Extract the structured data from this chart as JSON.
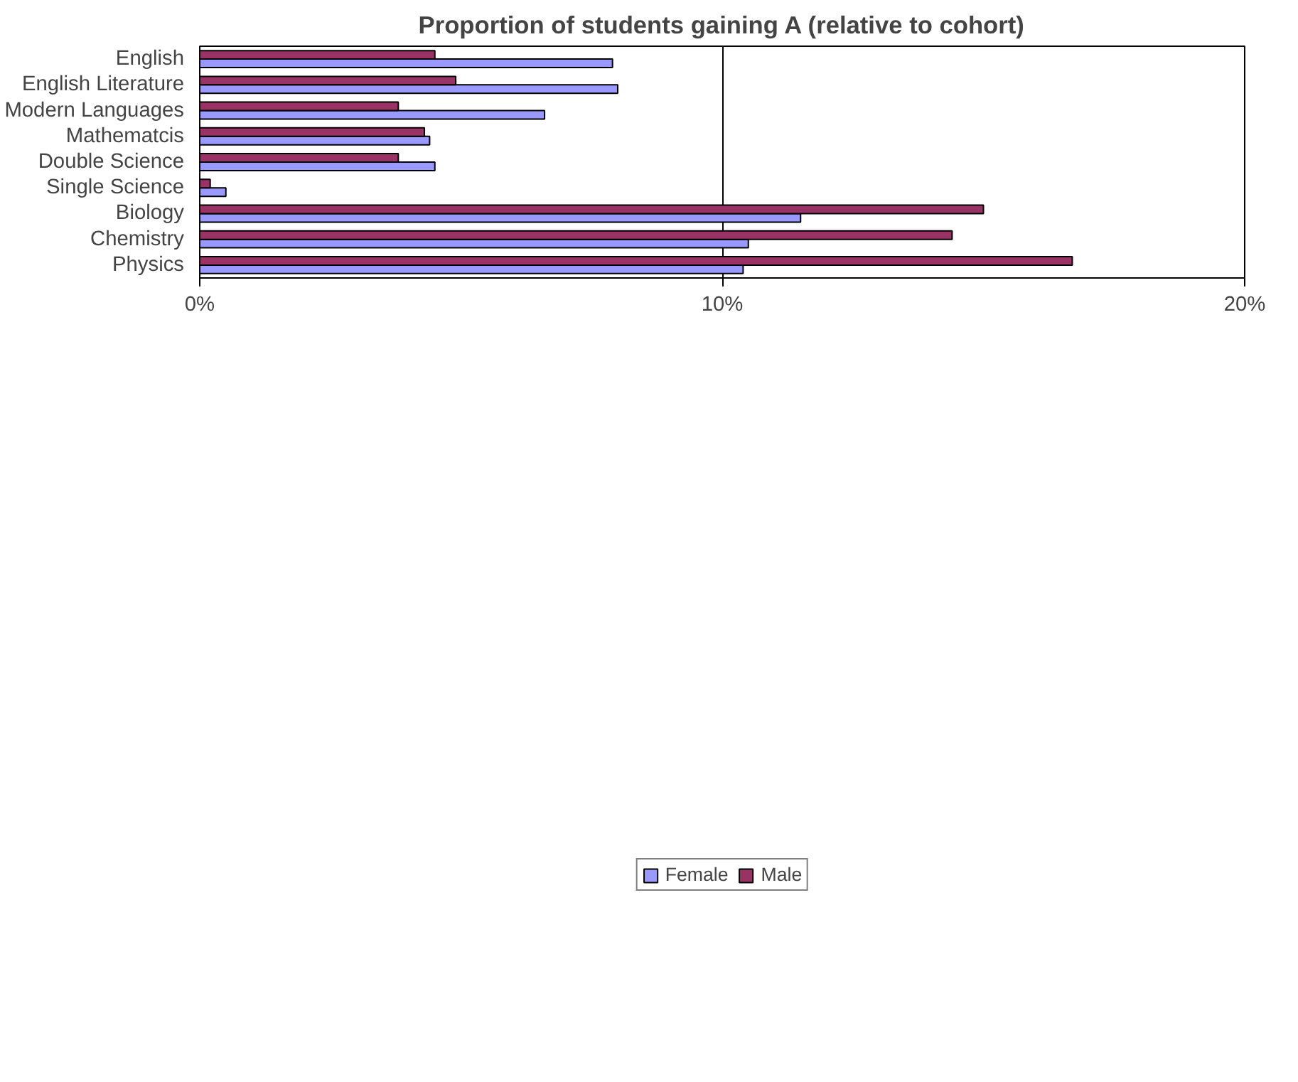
{
  "chart_data": {
    "type": "bar",
    "orientation": "horizontal",
    "title": "Proportion of students gaining A (relative to cohort)",
    "categories": [
      "English",
      "English Literature",
      "Modern Languages",
      "Mathematcis",
      "Double Science",
      "Single Science",
      "Biology",
      "Chemistry",
      "Physics"
    ],
    "series": [
      {
        "name": "Female",
        "color": "#9999ff",
        "values": [
          7.9,
          8.0,
          6.6,
          4.4,
          4.5,
          0.5,
          11.5,
          10.5,
          10.4
        ]
      },
      {
        "name": "Male",
        "color": "#993366",
        "values": [
          4.5,
          4.9,
          3.8,
          4.3,
          3.8,
          0.2,
          15.0,
          14.4,
          16.7
        ]
      }
    ],
    "xlim": [
      0,
      20
    ],
    "xticks": [
      {
        "value": 0,
        "label": "0%"
      },
      {
        "value": 10,
        "label": "10%"
      },
      {
        "value": 20,
        "label": "20%"
      }
    ],
    "grid": "x",
    "legend": "bottom"
  }
}
